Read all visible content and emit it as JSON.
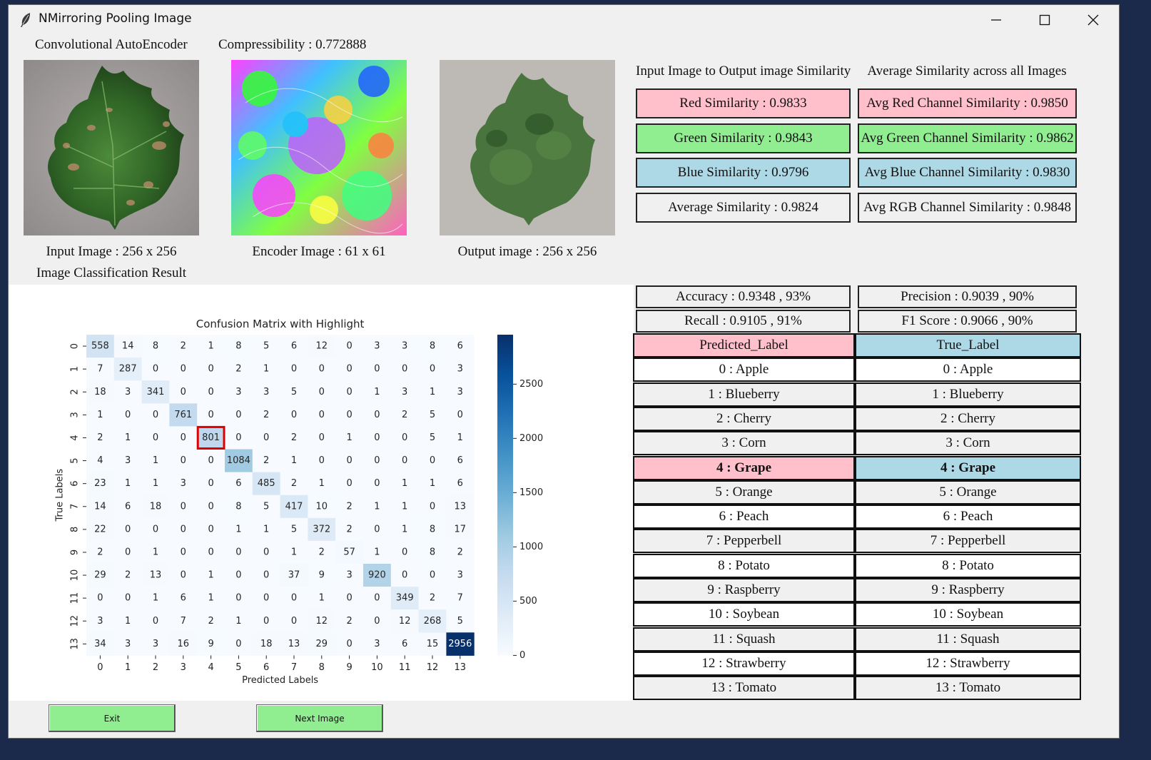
{
  "window": {
    "title": "NMirroring Pooling Image",
    "app_icon": "feather-icon"
  },
  "header": {
    "autoencoder_label": "Convolutional AutoEncoder",
    "compressibility_label": "Compressibility : 0.772888"
  },
  "images": {
    "input_caption": "Input Image : 256 x 256",
    "encoder_caption": "Encoder Image : 61 x 61",
    "output_caption": "Output image : 256 x 256"
  },
  "similarity": {
    "io_title": "Input Image to Output image Similarity",
    "avg_title": "Average Similarity across all Images",
    "red": "Red Similarity : 0.9833",
    "green": "Green Similarity : 0.9843",
    "blue": "Blue Similarity : 0.9796",
    "average": "Average Similarity : 0.9824",
    "avg_red": "Avg Red Channel Similarity : 0.9850",
    "avg_green": "Avg Green Channel Similarity : 0.9862",
    "avg_blue": "Avg Blue Channel Similarity : 0.9830",
    "avg_rgb": "Avg RGB Channel Similarity : 0.9848"
  },
  "classification": {
    "section_title": "Image Classification Result",
    "accuracy": "Accuracy : 0.9348 , 93%",
    "precision": "Precision : 0.9039 , 90%",
    "recall": "Recall : 0.9105 , 91%",
    "f1": "F1 Score : 0.9066 , 90%"
  },
  "labels_table": {
    "predicted_header": "Predicted_Label",
    "true_header": "True_Label",
    "highlight_index": 4,
    "rows": [
      "0 : Apple",
      "1 : Blueberry",
      "2 : Cherry",
      "3 : Corn",
      "4 : Grape",
      "5 : Orange",
      "6 : Peach",
      "7 : Pepperbell",
      "8 : Potato",
      "9 : Raspberry",
      "10 : Soybean",
      "11 : Squash",
      "12 : Strawberry",
      "13 : Tomato"
    ]
  },
  "buttons": {
    "exit": "Exit",
    "next": "Next Image"
  },
  "chart_data": {
    "type": "heatmap",
    "title": "Confusion Matrix with Highlight",
    "xlabel": "Predicted Labels",
    "ylabel": "True Labels",
    "x_ticks": [
      "0",
      "1",
      "2",
      "3",
      "4",
      "5",
      "6",
      "7",
      "8",
      "9",
      "10",
      "11",
      "12",
      "13"
    ],
    "y_ticks": [
      "0",
      "1",
      "2",
      "3",
      "4",
      "5",
      "6",
      "7",
      "8",
      "9",
      "10",
      "11",
      "12",
      "13"
    ],
    "highlight": {
      "row": 4,
      "col": 4,
      "color": "#e00000"
    },
    "colormap": "Blues",
    "colorbar": {
      "min": 0,
      "max": 2956,
      "ticks": [
        0,
        500,
        1000,
        1500,
        2000,
        2500
      ]
    },
    "matrix": [
      [
        558,
        14,
        8,
        2,
        1,
        8,
        5,
        6,
        12,
        0,
        3,
        3,
        8,
        6
      ],
      [
        7,
        287,
        0,
        0,
        0,
        2,
        1,
        0,
        0,
        0,
        0,
        0,
        0,
        3
      ],
      [
        18,
        3,
        341,
        0,
        0,
        3,
        3,
        5,
        0,
        0,
        1,
        3,
        1,
        3
      ],
      [
        1,
        0,
        0,
        761,
        0,
        0,
        2,
        0,
        0,
        0,
        0,
        2,
        5,
        0
      ],
      [
        2,
        1,
        0,
        0,
        801,
        0,
        0,
        2,
        0,
        1,
        0,
        0,
        5,
        1
      ],
      [
        4,
        3,
        1,
        0,
        0,
        1084,
        2,
        1,
        0,
        0,
        0,
        0,
        0,
        6
      ],
      [
        23,
        1,
        1,
        3,
        0,
        6,
        485,
        2,
        1,
        0,
        0,
        1,
        1,
        6
      ],
      [
        14,
        6,
        18,
        0,
        0,
        8,
        5,
        417,
        10,
        2,
        1,
        1,
        0,
        13
      ],
      [
        22,
        0,
        0,
        0,
        0,
        1,
        1,
        5,
        372,
        2,
        0,
        1,
        8,
        17
      ],
      [
        2,
        0,
        1,
        0,
        0,
        0,
        0,
        1,
        2,
        57,
        1,
        0,
        8,
        2
      ],
      [
        29,
        2,
        13,
        0,
        1,
        0,
        0,
        37,
        9,
        3,
        920,
        0,
        0,
        3
      ],
      [
        0,
        0,
        1,
        6,
        1,
        0,
        0,
        0,
        1,
        0,
        0,
        349,
        2,
        7
      ],
      [
        3,
        1,
        0,
        7,
        2,
        1,
        0,
        0,
        12,
        2,
        0,
        12,
        268,
        5
      ],
      [
        34,
        3,
        3,
        16,
        9,
        0,
        18,
        13,
        29,
        0,
        3,
        6,
        15,
        2956
      ]
    ]
  }
}
